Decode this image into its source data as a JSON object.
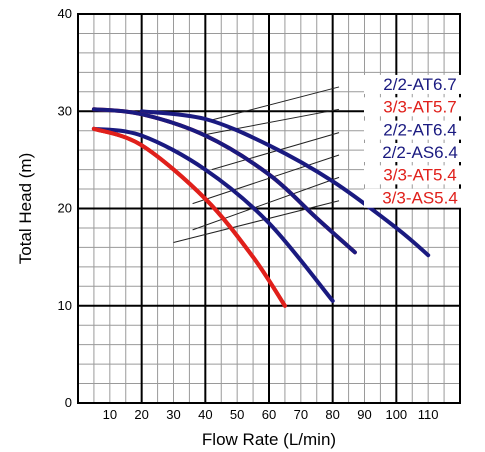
{
  "chart_data": {
    "type": "line",
    "xlabel": "Flow Rate (L/min)",
    "ylabel": "Total Head (m)",
    "xlim": [
      0,
      120
    ],
    "ylim": [
      0,
      40
    ],
    "x_ticks": [
      10,
      20,
      30,
      40,
      50,
      60,
      70,
      80,
      90,
      100,
      110
    ],
    "y_ticks": [
      0,
      10,
      20,
      30,
      40
    ],
    "grid": true,
    "legend_placement": "top-right",
    "colors": {
      "blue": "#1a1a80",
      "red": "#e0201b"
    },
    "series": [
      {
        "name": "2/2-AT6.7",
        "color": "#1a1a80",
        "points": [
          [
            20,
            30
          ],
          [
            40,
            29.2
          ],
          [
            60,
            26.5
          ],
          [
            80,
            22.8
          ],
          [
            100,
            18
          ],
          [
            110,
            15.2
          ]
        ]
      },
      {
        "name": "3/3-AT5.7",
        "color": "#e0201b",
        "points": [
          [
            5,
            30.2
          ],
          [
            20,
            29.7
          ],
          [
            40,
            27.5
          ],
          [
            60,
            23.5
          ],
          [
            75,
            19
          ],
          [
            87,
            15.5
          ]
        ]
      },
      {
        "name": "2/2-AT6.4",
        "color": "#1a1a80",
        "points": [
          [
            5,
            28.2
          ],
          [
            20,
            27.5
          ],
          [
            40,
            24
          ],
          [
            60,
            18.5
          ],
          [
            80,
            10.5
          ]
        ]
      },
      {
        "name": "2/2-AS6.4",
        "color": "#1a1a80",
        "points": [
          [
            5,
            30.2
          ],
          [
            20,
            29.7
          ],
          [
            40,
            27.5
          ],
          [
            60,
            23.5
          ],
          [
            75,
            19
          ],
          [
            87,
            15.5
          ]
        ]
      },
      {
        "name": "3/3-AT5.4",
        "color": "#e0201b",
        "points": [
          [
            5,
            28.2
          ],
          [
            20,
            26.5
          ],
          [
            40,
            21
          ],
          [
            55,
            15
          ],
          [
            65,
            10
          ]
        ]
      },
      {
        "name": "3/3-AS5.4",
        "color": "#e0201b",
        "points": [
          [
            5,
            28.2
          ],
          [
            20,
            26.5
          ],
          [
            40,
            21
          ],
          [
            55,
            15
          ],
          [
            65,
            10
          ]
        ]
      }
    ],
    "legend_leaders": [
      {
        "series": "2/2-AT6.7",
        "from": [
          82,
          32.5
        ],
        "to": [
          42,
          29.1
        ]
      },
      {
        "series": "3/3-AT5.7",
        "from": [
          82,
          30.2
        ],
        "to": [
          40,
          27.6
        ]
      },
      {
        "series": "2/2-AT6.4",
        "from": [
          82,
          27.8
        ],
        "to": [
          42,
          24.0
        ]
      },
      {
        "series": "2/2-AS6.4",
        "from": [
          82,
          25.5
        ],
        "to": [
          36,
          20.5
        ]
      },
      {
        "series": "3/3-AT5.4",
        "from": [
          82,
          23.2
        ],
        "to": [
          36,
          17.8
        ]
      },
      {
        "series": "3/3-AS5.4",
        "from": [
          82,
          20.8
        ],
        "to": [
          30,
          16.5
        ]
      }
    ]
  }
}
